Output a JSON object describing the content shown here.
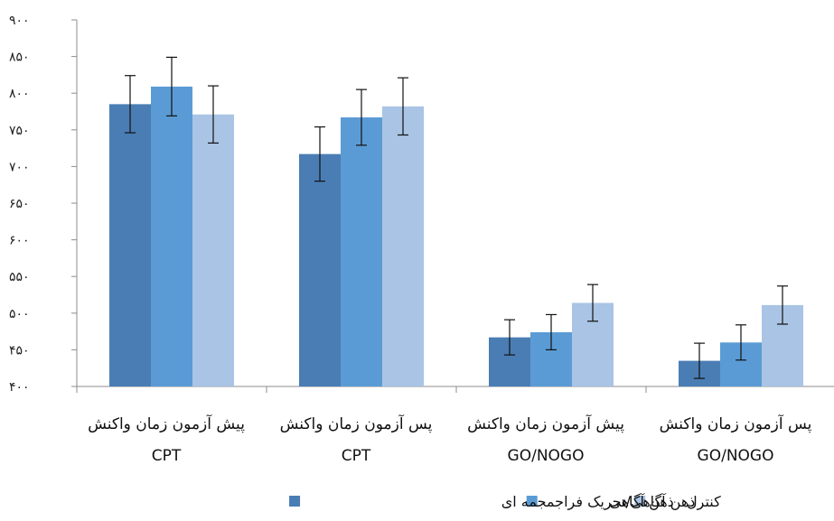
{
  "chart_data": {
    "type": "bar",
    "title": "",
    "xlabel": "",
    "ylabel": "",
    "ylim": [
      400,
      900
    ],
    "yticks": [
      400,
      450,
      500,
      550,
      600,
      650,
      700,
      750,
      800,
      850,
      900
    ],
    "ytick_labels": [
      "۴۰۰",
      "۴۵۰",
      "۵۰۰",
      "۵۵۰",
      "۶۰۰",
      "۶۵۰",
      "۷۰۰",
      "۷۵۰",
      "۸۰۰",
      "۸۵۰",
      "۹۰۰"
    ],
    "grid": false,
    "legend": "bottom",
    "categories": [
      {
        "line1": "پیش آزمون زمان واکنش",
        "line2": "CPT"
      },
      {
        "line1": "پس آزمون زمان واکنش",
        "line2": "CPT"
      },
      {
        "line1": "پیش آزمون زمان واکنش",
        "line2": "GO/NOGO"
      },
      {
        "line1": "پس آزمون زمان واکنش",
        "line2": "GO/NOGO"
      }
    ],
    "series": [
      {
        "name": "ذهن آگاهی/تحریک فراجمجمه ای",
        "color": "#4a7db4",
        "values": [
          785,
          717,
          467,
          435
        ],
        "errors": [
          39,
          37,
          24,
          24
        ]
      },
      {
        "name": "ذهن آگاهی",
        "color": "#5b9bd5",
        "values": [
          809,
          767,
          474,
          460
        ],
        "errors": [
          40,
          38,
          24,
          24
        ]
      },
      {
        "name": "کنترل",
        "color": "#a9c4e4",
        "values": [
          771,
          782,
          514,
          511
        ],
        "errors": [
          39,
          39,
          25,
          26
        ]
      }
    ]
  }
}
